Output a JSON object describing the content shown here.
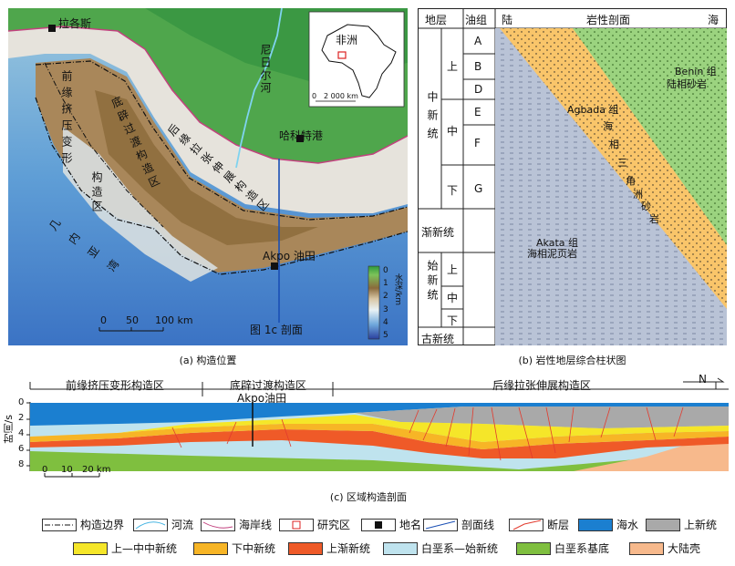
{
  "panel_a": {
    "caption": "(a) 构造位置",
    "place_lagos": "拉各斯",
    "place_harcourt": "哈科特港",
    "oilfield": "Akpo 油田",
    "river": "尼日尔河",
    "inset_label": "非洲",
    "inset_scale": "2 000 km",
    "inset_scale_zero": "0",
    "zone_front": "前缘挤压变形",
    "zone_front2": "构造区",
    "zone_mid": "底辟过渡构造区",
    "zone_back": "后缘拉张伸展构造区",
    "gulf": "几内亚湾",
    "section_label": "图 1c 剖面",
    "scale_ticks": [
      "0",
      "50",
      "100 km"
    ],
    "depth_unit": "水深/km",
    "depth_ticks": [
      "0",
      "1",
      "2",
      "3",
      "4",
      "5"
    ]
  },
  "panel_b": {
    "caption": "(b) 岩性地层综合柱状图",
    "hdr_stratum": "地层",
    "hdr_group": "油组",
    "hdr_land": "陆",
    "hdr_profile": "岩性剖面",
    "hdr_sea": "海",
    "miocene": "中新统",
    "upper": "上",
    "middle": "中",
    "lower": "下",
    "groups": [
      "A",
      "B",
      "D",
      "E",
      "F",
      "G"
    ],
    "oligocene": "渐新统",
    "eocene": "始新统",
    "eo_sub": [
      "上",
      "中",
      "下"
    ],
    "paleocene": "古新统",
    "benin": "Benin 组",
    "benin2": "陆相砂岩",
    "agbada": "Agbada 组",
    "agbada_chars": [
      "海",
      "相",
      "三",
      "角",
      "洲",
      "砂",
      "岩"
    ],
    "akata": "Akata 组",
    "akata2": "海相泥页岩"
  },
  "panel_c": {
    "caption": "(c) 区域构造剖面",
    "zone1": "前缘挤压变形构造区",
    "zone2": "底辟过渡构造区",
    "zone3": "后缘拉张伸展构造区",
    "north": "N",
    "oilfield": "Akpo油田",
    "ylabel": "时间/s",
    "yticks": [
      "0",
      "2",
      "4",
      "6",
      "8"
    ],
    "scale": [
      "0",
      "10",
      "20 km"
    ]
  },
  "legend": [
    {
      "label": "构造边界",
      "kind": "boundary"
    },
    {
      "label": "河流",
      "kind": "river"
    },
    {
      "label": "海岸线",
      "kind": "coast"
    },
    {
      "label": "研究区",
      "kind": "study"
    },
    {
      "label": "地名",
      "kind": "place"
    },
    {
      "label": "剖面线",
      "kind": "section"
    },
    {
      "label": "断层",
      "kind": "fault"
    },
    {
      "label": "海水",
      "kind": "fill",
      "color": "#1b7fd0"
    },
    {
      "label": "上新统",
      "kind": "fill",
      "color": "#a9a9a9"
    },
    {
      "label": "上—中中新统",
      "kind": "fill",
      "color": "#f5e629"
    },
    {
      "label": "下中新统",
      "kind": "fill",
      "color": "#f7b526"
    },
    {
      "label": "上渐新统",
      "kind": "fill",
      "color": "#ef5a28"
    },
    {
      "label": "白垩系—始新统",
      "kind": "fill",
      "color": "#bfe3ee"
    },
    {
      "label": "白垩系基底",
      "kind": "fill",
      "color": "#7fbf3f"
    },
    {
      "label": "大陆壳",
      "kind": "fill",
      "color": "#f7b98c"
    }
  ]
}
